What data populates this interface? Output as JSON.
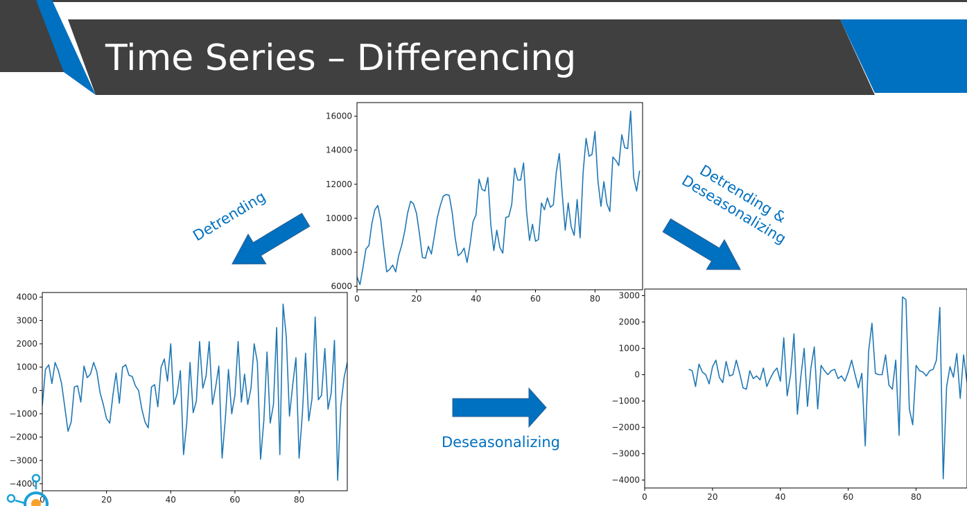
{
  "slide": {
    "title": "Time Series – Differencing",
    "labels": {
      "detrending": "Detrending",
      "detrending_deseasonalizing_line1": "Detrending &",
      "detrending_deseasonalizing_line2": "Deseasonalizing",
      "deseasonalizing": "Deseasonalizing"
    },
    "colors": {
      "banner": "#404040",
      "accent": "#0070c0",
      "line": "#1f77b4",
      "background": "#ffffff"
    },
    "icons": [
      "lightbulb-logo-icon",
      "arrow-down-left-icon",
      "arrow-down-right-icon",
      "arrow-right-icon"
    ]
  },
  "chart_data": [
    {
      "id": "original",
      "type": "line",
      "title": "",
      "xlabel": "",
      "ylabel": "",
      "xlim": [
        0,
        96
      ],
      "ylim": [
        5800,
        16800
      ],
      "xticks": [
        0,
        20,
        40,
        60,
        80
      ],
      "xtick_labels": [
        "0",
        "20",
        "40",
        "60",
        "80"
      ],
      "yticks": [
        6000,
        8000,
        10000,
        12000,
        14000,
        16000
      ],
      "ytick_labels": [
        "6000",
        "8000",
        "10000",
        "12000",
        "14000",
        "16000"
      ],
      "grid": false,
      "series": [
        {
          "x": [
            0,
            1,
            2,
            3,
            4,
            5,
            6,
            7,
            8,
            9,
            10,
            11,
            12,
            13,
            14,
            15,
            16,
            17,
            18,
            19,
            20,
            21,
            22,
            23,
            24,
            25,
            26,
            27,
            28,
            29,
            30,
            31,
            32,
            33,
            34,
            35,
            36,
            37,
            38,
            39,
            40,
            41,
            42,
            43,
            44,
            45,
            46,
            47,
            48,
            49,
            50,
            51,
            52,
            53,
            54,
            55,
            56,
            57,
            58,
            59,
            60,
            61,
            62,
            63,
            64,
            65,
            66,
            67,
            68,
            69,
            70,
            71,
            72,
            73,
            74,
            75,
            76,
            77,
            78,
            79,
            80,
            81,
            82,
            83,
            84,
            85,
            86,
            87,
            88,
            89,
            90,
            91,
            92,
            93,
            94,
            95
          ],
          "values": [
            6550,
            6100,
            7100,
            8200,
            8400,
            9700,
            10500,
            10750,
            9900,
            8300,
            6850,
            7000,
            7250,
            6850,
            7800,
            8400,
            9200,
            10300,
            11000,
            10850,
            10300,
            9100,
            7700,
            7650,
            8350,
            7900,
            8950,
            10050,
            10750,
            11300,
            11400,
            11350,
            10350,
            8850,
            7800,
            7950,
            8250,
            7400,
            8450,
            9800,
            10200,
            12300,
            11700,
            11600,
            12400,
            9600,
            8100,
            9300,
            8300,
            7950,
            10050,
            10100,
            10800,
            12950,
            12250,
            12250,
            13250,
            10400,
            8700,
            9650,
            8650,
            8750,
            10900,
            10500,
            11200,
            10650,
            10800,
            12700,
            13800,
            11400,
            9300,
            10900,
            9500,
            9000,
            11100,
            8850,
            12700,
            14700,
            13650,
            13750,
            15100,
            12200,
            10700,
            12150,
            10850,
            10400,
            13600,
            13400,
            13100,
            14900,
            14150,
            14100,
            16300,
            12400,
            11600,
            12800
          ]
        }
      ]
    },
    {
      "id": "detrended",
      "type": "line",
      "title": "",
      "xlabel": "",
      "ylabel": "",
      "xlim": [
        0,
        95
      ],
      "ylim": [
        -4300,
        4200
      ],
      "xticks": [
        0,
        20,
        40,
        60,
        80
      ],
      "xtick_labels": [
        "0",
        "20",
        "40",
        "60",
        "80"
      ],
      "yticks": [
        -4000,
        -3000,
        -2000,
        -1000,
        0,
        1000,
        2000,
        3000,
        4000
      ],
      "ytick_labels": [
        "−4000",
        "−3000",
        "−2000",
        "−1000",
        "0",
        "1000",
        "2000",
        "3000",
        "4000"
      ],
      "grid": false,
      "series": [
        {
          "x": [
            0,
            1,
            2,
            3,
            4,
            5,
            6,
            7,
            8,
            9,
            10,
            11,
            12,
            13,
            14,
            15,
            16,
            17,
            18,
            19,
            20,
            21,
            22,
            23,
            24,
            25,
            26,
            27,
            28,
            29,
            30,
            31,
            32,
            33,
            34,
            35,
            36,
            37,
            38,
            39,
            40,
            41,
            42,
            43,
            44,
            45,
            46,
            47,
            48,
            49,
            50,
            51,
            52,
            53,
            54,
            55,
            56,
            57,
            58,
            59,
            60,
            61,
            62,
            63,
            64,
            65,
            66,
            67,
            68,
            69,
            70,
            71,
            72,
            73,
            74,
            75,
            76,
            77,
            78,
            79,
            80,
            81,
            82,
            83,
            84,
            85,
            86,
            87,
            88,
            89,
            90,
            91,
            92,
            93,
            94,
            95
          ],
          "values": [
            -650,
            900,
            1100,
            300,
            1200,
            850,
            300,
            -700,
            -1750,
            -1350,
            150,
            200,
            -500,
            1050,
            550,
            700,
            1200,
            800,
            -100,
            -600,
            -1200,
            -1400,
            -200,
            750,
            -550,
            1000,
            1100,
            650,
            600,
            200,
            0,
            -800,
            -1350,
            -1600,
            150,
            250,
            -700,
            1000,
            1350,
            400,
            2000,
            -600,
            -150,
            850,
            -2750,
            -1400,
            1200,
            -950,
            -450,
            2100,
            100,
            600,
            2100,
            -600,
            150,
            1050,
            -2900,
            -1250,
            900,
            -1000,
            -200,
            2100,
            -500,
            700,
            -600,
            100,
            2000,
            1200,
            -2950,
            -1300,
            1650,
            -1400,
            -600,
            2700,
            -2750,
            3700,
            2300,
            -1100,
            250,
            1400,
            -2900,
            -1000,
            1600,
            -1300,
            -350,
            3150,
            -400,
            -200,
            1800,
            -800,
            -100,
            2150,
            -3850,
            -650,
            550,
            1200
          ]
        }
      ]
    },
    {
      "id": "detrended_deseasonalized",
      "type": "line",
      "title": "",
      "xlabel": "",
      "ylabel": "",
      "xlim": [
        0,
        95
      ],
      "ylim": [
        -4300,
        3250
      ],
      "xticks": [
        0,
        20,
        40,
        60,
        80
      ],
      "xtick_labels": [
        "0",
        "20",
        "40",
        "60",
        "80"
      ],
      "yticks": [
        -4000,
        -3000,
        -2000,
        -1000,
        0,
        1000,
        2000,
        3000
      ],
      "ytick_labels": [
        "−4000",
        "−3000",
        "−2000",
        "−1000",
        "0",
        "1000",
        "2000",
        "3000"
      ],
      "grid": false,
      "series": [
        {
          "x": [
            13,
            14,
            15,
            16,
            17,
            18,
            19,
            20,
            21,
            22,
            23,
            24,
            25,
            26,
            27,
            28,
            29,
            30,
            31,
            32,
            33,
            34,
            35,
            36,
            37,
            38,
            39,
            40,
            41,
            42,
            43,
            44,
            45,
            46,
            47,
            48,
            49,
            50,
            51,
            52,
            53,
            54,
            55,
            56,
            57,
            58,
            59,
            60,
            61,
            62,
            63,
            64,
            65,
            66,
            67,
            68,
            69,
            70,
            71,
            72,
            73,
            74,
            75,
            76,
            77,
            78,
            79,
            80,
            81,
            82,
            83,
            84,
            85,
            86,
            87,
            88,
            89,
            90,
            91,
            92,
            93,
            94,
            95
          ],
          "values": [
            200,
            150,
            -450,
            400,
            100,
            0,
            -350,
            300,
            550,
            -100,
            -300,
            500,
            -50,
            0,
            550,
            50,
            -500,
            -550,
            150,
            -150,
            -50,
            -200,
            250,
            -450,
            -150,
            100,
            250,
            -250,
            1400,
            -800,
            0,
            1550,
            -1500,
            -100,
            1000,
            -1200,
            250,
            1050,
            -1300,
            350,
            150,
            0,
            150,
            200,
            -150,
            -50,
            -250,
            100,
            550,
            0,
            -500,
            50,
            -2700,
            900,
            1950,
            50,
            0,
            0,
            750,
            -400,
            -550,
            550,
            -2300,
            2950,
            2850,
            -1300,
            -1900,
            350,
            150,
            100,
            -50,
            150,
            200,
            550,
            2550,
            -3950,
            -450,
            300,
            -100,
            800,
            -900,
            750,
            -300
          ]
        }
      ]
    }
  ]
}
